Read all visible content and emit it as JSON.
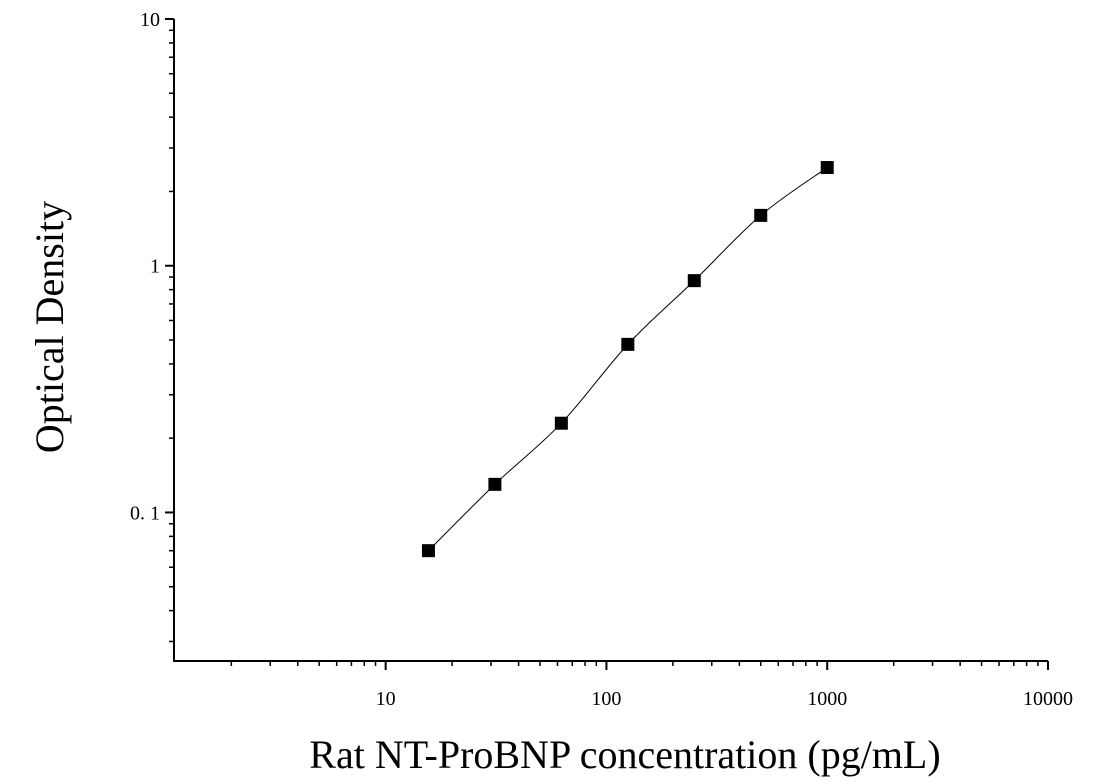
{
  "chart_data": {
    "type": "scatter",
    "title": "",
    "xlabel": "Rat NT-ProBNP concentration (pg/mL)",
    "ylabel": "Optical Density",
    "x_scale": "log",
    "y_scale": "log",
    "xlim": [
      1.1,
      10000
    ],
    "ylim": [
      0.025,
      10
    ],
    "x_ticks": [
      {
        "value": 10,
        "label": "10"
      },
      {
        "value": 100,
        "label": "100"
      },
      {
        "value": 1000,
        "label": "1000"
      },
      {
        "value": 10000,
        "label": "10000"
      }
    ],
    "y_ticks": [
      {
        "value": 0.1,
        "label": "0. 1"
      },
      {
        "value": 1,
        "label": "1"
      },
      {
        "value": 10,
        "label": "10"
      }
    ],
    "grid": false,
    "legend": "none",
    "fit_curve": true,
    "marker": "square",
    "color": "#000000",
    "series": [
      {
        "x": [
          15.625,
          31.25,
          62.5,
          125,
          250,
          500,
          1000
        ],
        "y": [
          0.07,
          0.13,
          0.23,
          0.48,
          0.87,
          1.6,
          2.5
        ]
      }
    ]
  }
}
